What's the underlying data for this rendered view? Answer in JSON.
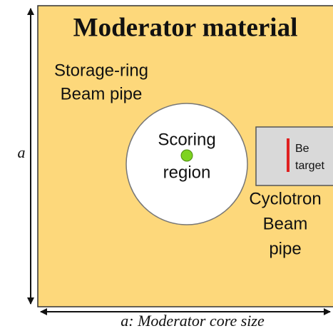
{
  "title": "Moderator material",
  "labels": {
    "storage_ring": [
      "Storage-ring",
      "Beam pipe"
    ],
    "scoring": [
      "Scoring",
      "region"
    ],
    "target": [
      "Be",
      "target"
    ],
    "cyclotron": [
      "Cyclotron",
      "Beam",
      "pipe"
    ]
  },
  "dimensions": {
    "vertical": "a",
    "horizontal": "a: Moderator core size"
  }
}
